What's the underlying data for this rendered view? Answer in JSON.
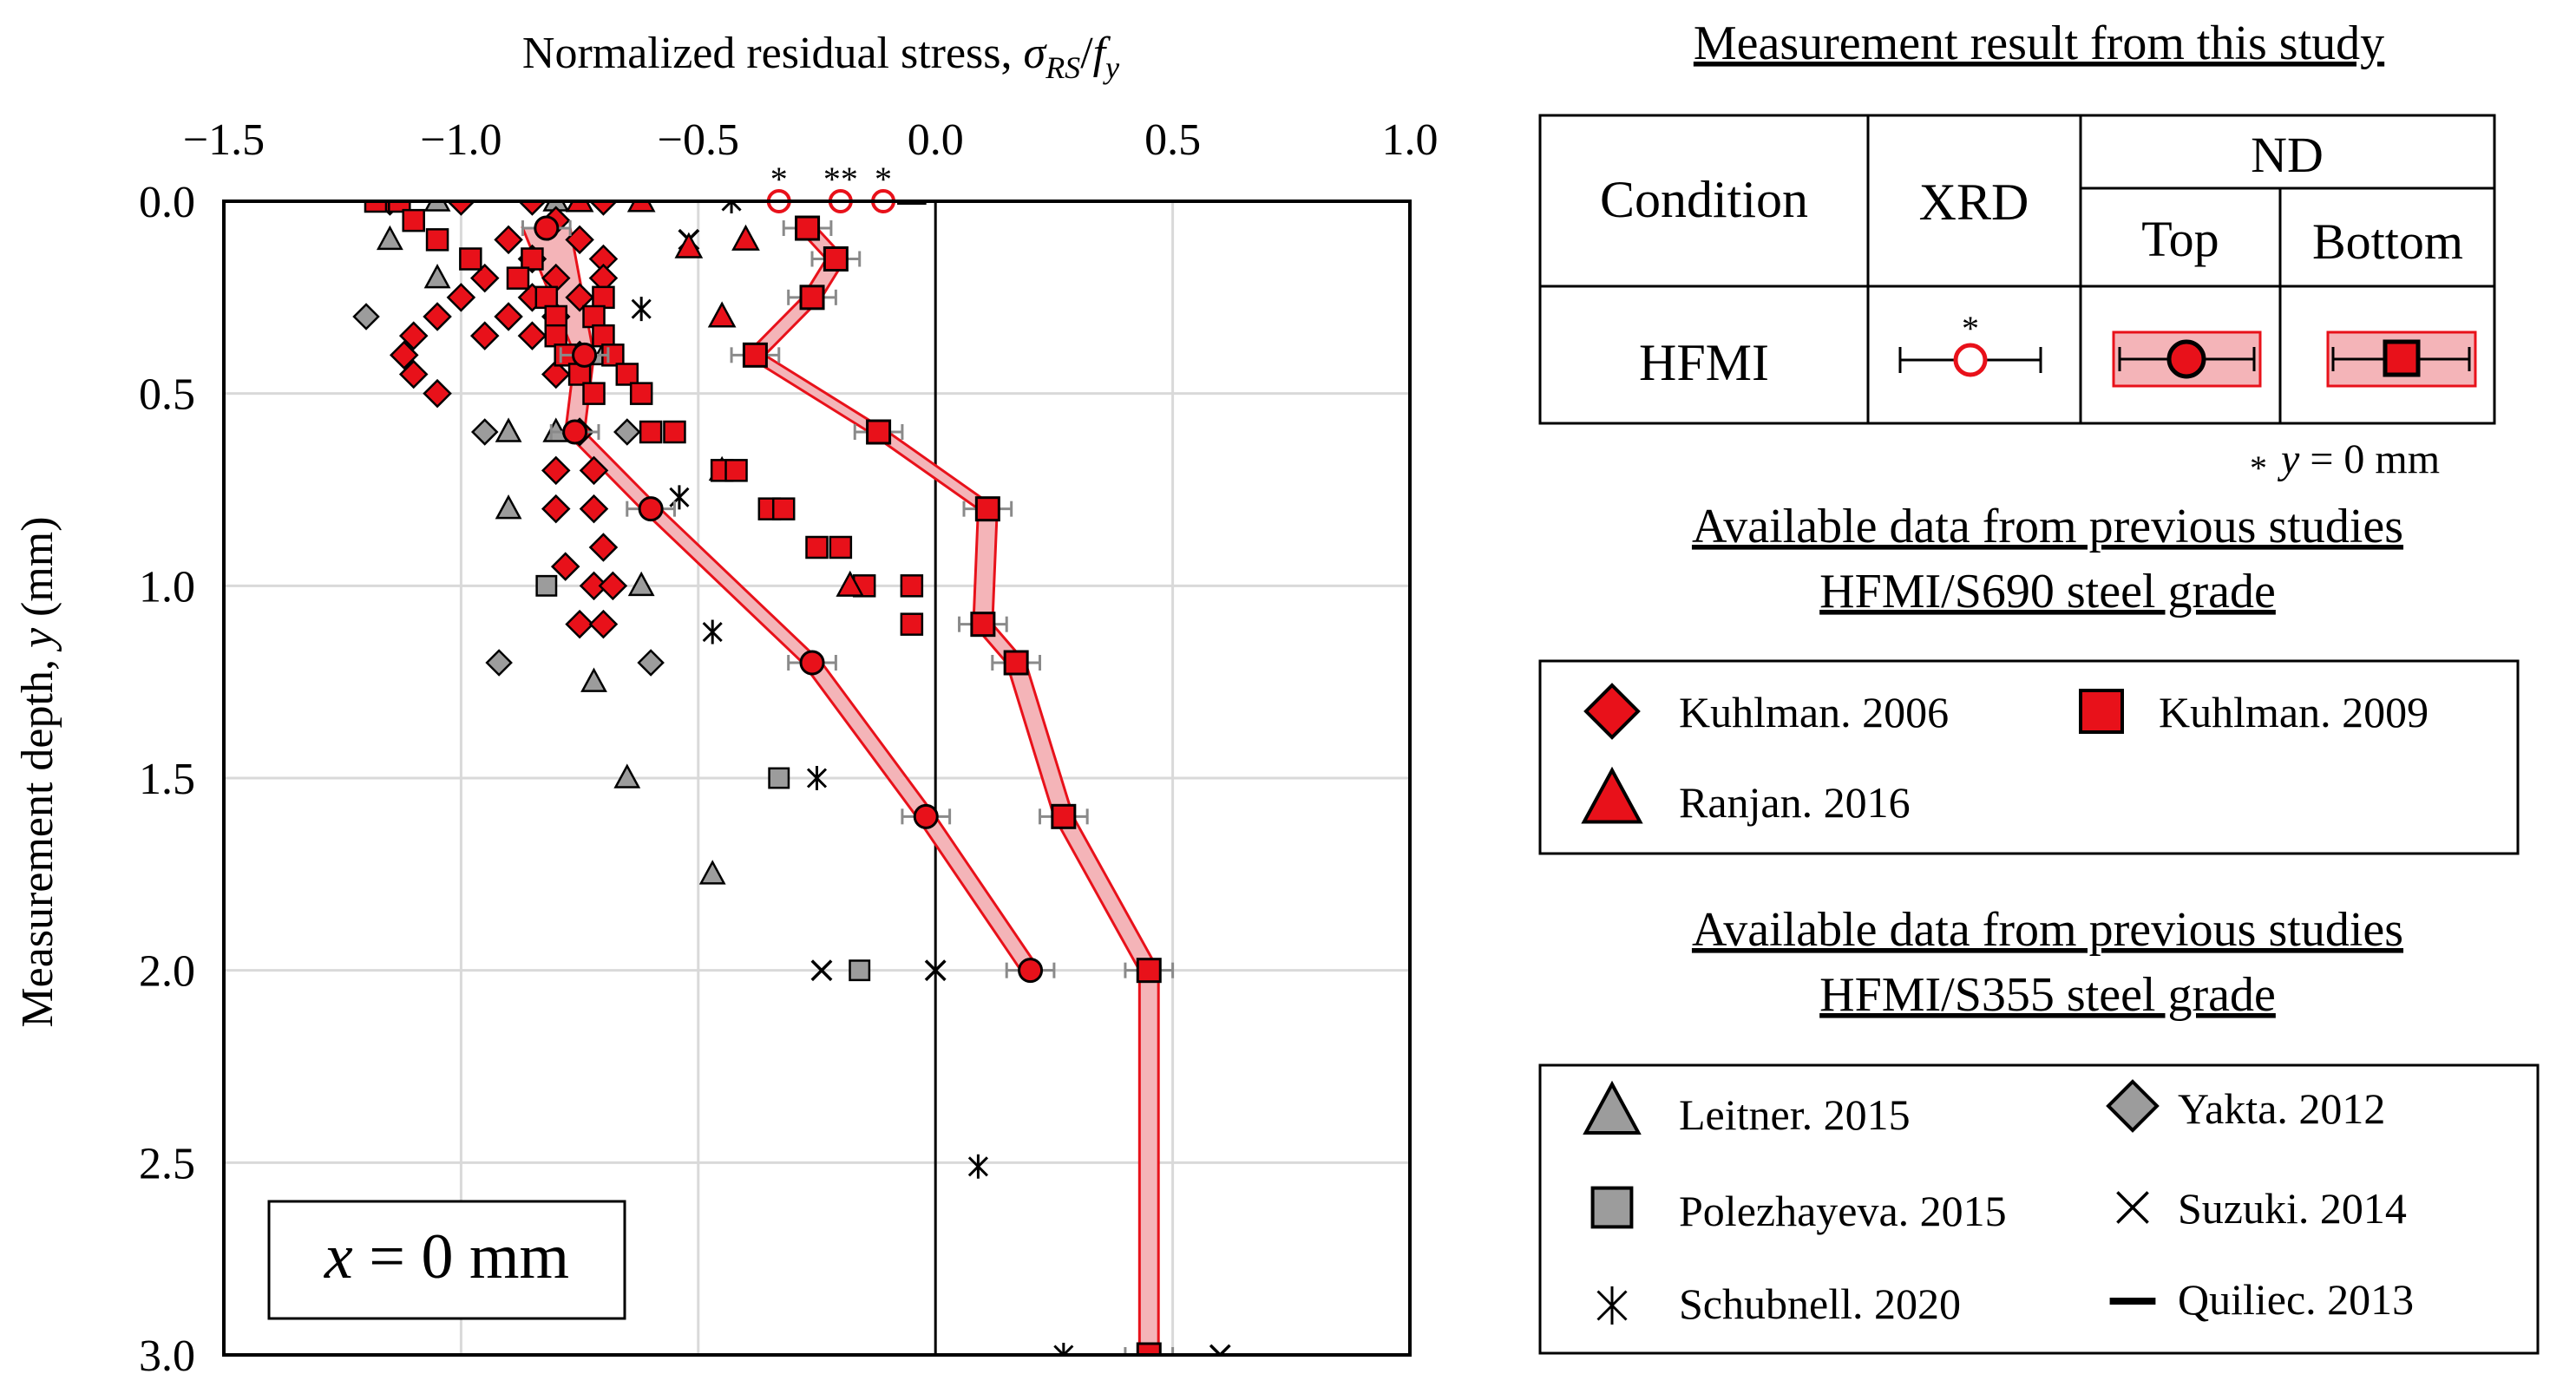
{
  "chart_data": {
    "type": "scatter",
    "orientation": "depth-profile",
    "xlabel": "Normalized residual stress, σRS/fy",
    "xlabel_parts": {
      "prefix": "Normalized residual stress, ",
      "sym": "σ",
      "sub1": "RS",
      "slash": "/",
      "sym2": "f",
      "sub2": "y"
    },
    "ylabel": "Measurement depth, y (mm)",
    "ylabel_parts": {
      "prefix": "Measurement depth, ",
      "sym": "y",
      "suffix": " (mm)"
    },
    "xlim": [
      -1.5,
      1.0
    ],
    "ylim": [
      0.0,
      3.0
    ],
    "x_ticks": [
      -1.5,
      -1.0,
      -0.5,
      0.0,
      0.5,
      1.0
    ],
    "x_tick_labels": [
      "−1.5",
      "−1.0",
      "−0.5",
      "0.0",
      "0.5",
      "1.0"
    ],
    "y_ticks": [
      0.0,
      0.5,
      1.0,
      1.5,
      2.0,
      2.5,
      3.0
    ],
    "y_tick_labels": [
      "0.0",
      "0.5",
      "1.0",
      "1.5",
      "2.0",
      "2.5",
      "3.0"
    ],
    "annotation": "x = 0 mm",
    "annotation_parts": {
      "sym": "x",
      "rest": " = 0 mm"
    },
    "this_study": {
      "nd_top": {
        "y": [
          0.07,
          0.4,
          0.6,
          0.8,
          1.2,
          1.6,
          2.0
        ],
        "x": [
          -0.82,
          -0.74,
          -0.76,
          -0.6,
          -0.26,
          -0.02,
          0.2
        ],
        "band_halfwidth": [
          0.05,
          0.02,
          0.02,
          0.02,
          0.02,
          0.02,
          0.02
        ]
      },
      "nd_bottom": {
        "y": [
          0.07,
          0.15,
          0.25,
          0.4,
          0.6,
          0.8,
          1.1,
          1.2,
          1.6,
          2.0,
          3.0
        ],
        "x": [
          -0.27,
          -0.21,
          -0.26,
          -0.38,
          -0.12,
          0.11,
          0.1,
          0.17,
          0.27,
          0.45,
          0.45
        ],
        "band_halfwidth": [
          0.02,
          0.02,
          0.02,
          0.02,
          0.02,
          0.02,
          0.02,
          0.02,
          0.02,
          0.02,
          0.02
        ]
      },
      "xrd": {
        "y": [
          0.0,
          0.0,
          0.0
        ],
        "x": [
          -0.33,
          -0.2,
          -0.11
        ]
      },
      "xrd_markers": [
        "*",
        "**",
        "*"
      ]
    },
    "series_s690": [
      {
        "name": "Kuhlman. 2006",
        "marker": "diamond-red",
        "points": [
          [
            -1.15,
            0.0
          ],
          [
            -1.0,
            0.0
          ],
          [
            -0.85,
            0.0
          ],
          [
            -0.7,
            0.0
          ],
          [
            -0.8,
            0.05
          ],
          [
            -0.9,
            0.1
          ],
          [
            -0.75,
            0.1
          ],
          [
            -0.85,
            0.15
          ],
          [
            -0.7,
            0.15
          ],
          [
            -0.95,
            0.2
          ],
          [
            -0.8,
            0.2
          ],
          [
            -0.7,
            0.2
          ],
          [
            -1.0,
            0.25
          ],
          [
            -0.85,
            0.25
          ],
          [
            -0.75,
            0.25
          ],
          [
            -1.05,
            0.3
          ],
          [
            -0.9,
            0.3
          ],
          [
            -0.8,
            0.3
          ],
          [
            -1.1,
            0.35
          ],
          [
            -0.95,
            0.35
          ],
          [
            -0.85,
            0.35
          ],
          [
            -1.12,
            0.4
          ],
          [
            -0.75,
            0.4
          ],
          [
            -1.1,
            0.45
          ],
          [
            -0.8,
            0.45
          ],
          [
            -1.05,
            0.5
          ],
          [
            -0.75,
            0.6
          ],
          [
            -0.8,
            0.7
          ],
          [
            -0.72,
            0.7
          ],
          [
            -0.8,
            0.8
          ],
          [
            -0.72,
            0.8
          ],
          [
            -0.7,
            0.9
          ],
          [
            -0.78,
            0.95
          ],
          [
            -0.72,
            1.0
          ],
          [
            -0.68,
            1.0
          ],
          [
            -0.75,
            1.1
          ],
          [
            -0.7,
            1.1
          ]
        ]
      },
      {
        "name": "Kuhlman. 2009",
        "marker": "square-red",
        "points": [
          [
            -1.18,
            0.0
          ],
          [
            -1.13,
            0.0
          ],
          [
            -1.1,
            0.05
          ],
          [
            -1.05,
            0.1
          ],
          [
            -0.98,
            0.15
          ],
          [
            -0.85,
            0.15
          ],
          [
            -0.88,
            0.2
          ],
          [
            -0.82,
            0.25
          ],
          [
            -0.7,
            0.25
          ],
          [
            -0.8,
            0.3
          ],
          [
            -0.72,
            0.3
          ],
          [
            -0.8,
            0.35
          ],
          [
            -0.7,
            0.35
          ],
          [
            -0.78,
            0.4
          ],
          [
            -0.68,
            0.4
          ],
          [
            -0.75,
            0.45
          ],
          [
            -0.65,
            0.45
          ],
          [
            -0.72,
            0.5
          ],
          [
            -0.62,
            0.5
          ],
          [
            -0.6,
            0.6
          ],
          [
            -0.55,
            0.6
          ],
          [
            -0.45,
            0.7
          ],
          [
            -0.42,
            0.7
          ],
          [
            -0.35,
            0.8
          ],
          [
            -0.32,
            0.8
          ],
          [
            -0.25,
            0.9
          ],
          [
            -0.2,
            0.9
          ],
          [
            -0.05,
            1.0
          ],
          [
            -0.15,
            1.0
          ],
          [
            -0.05,
            1.1
          ]
        ]
      },
      {
        "name": "Ranjan. 2016",
        "marker": "triangle-red",
        "points": [
          [
            -0.75,
            0.0
          ],
          [
            -0.62,
            0.0
          ],
          [
            -0.4,
            0.1
          ],
          [
            -0.52,
            0.12
          ],
          [
            -0.45,
            0.3
          ],
          [
            -0.18,
            1.0
          ]
        ]
      }
    ],
    "series_s355": [
      {
        "name": "Leitner. 2015",
        "marker": "triangle-gray",
        "points": [
          [
            -1.05,
            0.0
          ],
          [
            -0.8,
            0.0
          ],
          [
            -1.15,
            0.1
          ],
          [
            -1.05,
            0.2
          ],
          [
            -0.7,
            0.4
          ],
          [
            -0.9,
            0.6
          ],
          [
            -0.8,
            0.6
          ],
          [
            -0.45,
            0.7
          ],
          [
            -0.9,
            0.8
          ],
          [
            -0.62,
            1.0
          ],
          [
            -0.72,
            1.25
          ],
          [
            -0.65,
            1.5
          ],
          [
            -0.47,
            1.75
          ]
        ]
      },
      {
        "name": "Yakta. 2012",
        "marker": "diamond-gray",
        "points": [
          [
            -1.2,
            0.3
          ],
          [
            -0.95,
            0.6
          ],
          [
            -0.65,
            0.6
          ],
          [
            -0.92,
            1.2
          ],
          [
            -0.6,
            1.2
          ]
        ]
      },
      {
        "name": "Polezhayeva. 2015",
        "marker": "square-gray",
        "points": [
          [
            -0.82,
            1.0
          ],
          [
            -0.33,
            1.5
          ],
          [
            -0.16,
            2.0
          ]
        ]
      },
      {
        "name": "Suzuki. 2014",
        "marker": "x",
        "points": [
          [
            -0.52,
            0.1
          ],
          [
            -0.24,
            2.0
          ],
          [
            0.0,
            2.0
          ],
          [
            0.6,
            3.0
          ]
        ]
      },
      {
        "name": "Schubnell. 2020",
        "marker": "asterisk",
        "points": [
          [
            -0.43,
            0.0
          ],
          [
            -0.62,
            0.28
          ],
          [
            -0.54,
            0.77
          ],
          [
            -0.47,
            1.12
          ],
          [
            -0.25,
            1.5
          ],
          [
            0.09,
            2.51
          ],
          [
            0.27,
            3.0
          ]
        ]
      },
      {
        "name": "Quiliec. 2013",
        "marker": "dash",
        "points": [
          [
            -0.05,
            0.0
          ]
        ]
      }
    ]
  },
  "legend": {
    "study_title": "Measurement result from this study",
    "headers": {
      "condition": "Condition",
      "xrd": "XRD",
      "nd": "ND",
      "top": "Top",
      "bottom": "Bottom"
    },
    "row_label": "HFMI",
    "xrd_star": "*",
    "footnote_star": "*",
    "footnote_sym": "y",
    "footnote_rest": " = 0 mm",
    "s690_title_1": "Available data from previous studies",
    "s690_title_2": "HFMI/S690 steel grade",
    "s355_title_1": "Available data from previous studies",
    "s355_title_2": "HFMI/S355 steel grade"
  },
  "colors": {
    "red": "#e8111a",
    "band_fill": "#f4b4b8",
    "gray": "#9c9c9c",
    "grid": "#d9d9d9",
    "errorbar": "#8a8a8a"
  }
}
